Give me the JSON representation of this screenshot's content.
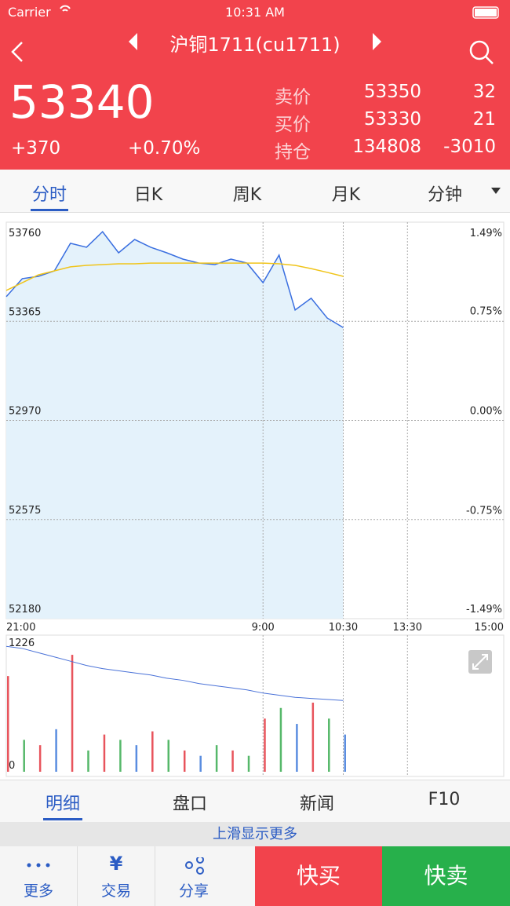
{
  "status_bar": {
    "carrier": "Carrier",
    "time": "10:31 AM"
  },
  "header": {
    "title": "沪铜1711(cu1711)",
    "price": "53340",
    "change": "+370",
    "change_pct": "+0.70%",
    "quotes": [
      [
        "卖价",
        "53350",
        "32"
      ],
      [
        "买价",
        "53330",
        "21"
      ],
      [
        "持仓",
        "134808",
        "-3010"
      ]
    ]
  },
  "tabs": {
    "items": [
      "分时",
      "日K",
      "周K",
      "月K",
      "分钟"
    ],
    "active": 0
  },
  "chart_data": [
    {
      "type": "line",
      "x": [
        0,
        15,
        30,
        45,
        60,
        75,
        90,
        105,
        120,
        135,
        150,
        165,
        180,
        195,
        210,
        225,
        240,
        255,
        270,
        285,
        300,
        315
      ],
      "xlim": [
        0,
        465
      ],
      "xticks": [
        {
          "value": 0,
          "label": "21:00"
        },
        {
          "value": 240,
          "label": "9:00"
        },
        {
          "value": 315,
          "label": "10:30"
        },
        {
          "value": 375,
          "label": "13:30"
        },
        {
          "value": 465,
          "label": "15:00"
        }
      ],
      "ylim": [
        52180,
        53760
      ],
      "yticks": [
        52180,
        52575,
        52970,
        53365,
        53760
      ],
      "y2lim": [
        -1.49,
        1.49
      ],
      "y2ticks": [
        {
          "value": -1.49,
          "label": "-1.49%"
        },
        {
          "value": -0.75,
          "label": "-0.75%"
        },
        {
          "value": 0,
          "label": "0.00%"
        },
        {
          "value": 0.75,
          "label": "0.75%"
        },
        {
          "value": 1.49,
          "label": "1.49%"
        }
      ],
      "grid": true,
      "area_color": "#e4f2fb",
      "series": [
        {
          "color": "#3a6fe0",
          "values": [
            53463,
            53535,
            53544,
            53566,
            53676,
            53660,
            53722,
            53638,
            53691,
            53660,
            53638,
            53613,
            53597,
            53591,
            53613,
            53597,
            53519,
            53629,
            53410,
            53457,
            53378,
            53340
          ]
        },
        {
          "color": "#f0c419",
          "values": [
            53488,
            53519,
            53550,
            53566,
            53582,
            53588,
            53591,
            53594,
            53594,
            53597,
            53597,
            53597,
            53597,
            53597,
            53597,
            53597,
            53597,
            53594,
            53588,
            53575,
            53560,
            53544
          ]
        }
      ]
    },
    {
      "type": "bar",
      "x": [
        0,
        15,
        30,
        45,
        60,
        75,
        90,
        105,
        120,
        135,
        150,
        165,
        180,
        195,
        210,
        225,
        240,
        255,
        270,
        285,
        300,
        315
      ],
      "xlim": [
        0,
        465
      ],
      "ylim": [
        0,
        1226
      ],
      "yticks": [
        0,
        1226
      ],
      "values": [
        900,
        300,
        250,
        400,
        1100,
        200,
        350,
        300,
        250,
        380,
        300,
        200,
        150,
        250,
        200,
        150,
        500,
        600,
        450,
        650,
        500,
        350
      ],
      "colors": [
        "#e8545c",
        "#56b86a",
        "#e8545c",
        "#5a8de0",
        "#e8545c",
        "#56b86a",
        "#e8545c",
        "#56b86a",
        "#5a8de0",
        "#e8545c",
        "#56b86a",
        "#e8545c",
        "#5a8de0",
        "#56b86a",
        "#e8545c",
        "#56b86a",
        "#e8545c",
        "#56b86a",
        "#5a8de0",
        "#e8545c",
        "#56b86a",
        "#5a8de0"
      ],
      "series": [
        {
          "color": "#4a72d8",
          "values": [
            1180,
            1160,
            1120,
            1080,
            1040,
            1000,
            970,
            950,
            930,
            910,
            880,
            860,
            830,
            810,
            790,
            770,
            740,
            720,
            700,
            690,
            680,
            670
          ]
        }
      ]
    }
  ],
  "detail_tabs": {
    "items": [
      "明细",
      "盘口",
      "新闻",
      "F10"
    ],
    "active": 0
  },
  "more_hint": "上滑显示更多",
  "toolbar": {
    "more": "更多",
    "trade_icon": "¥",
    "trade": "交易",
    "share": "分享",
    "buy": "快买",
    "sell": "快卖"
  }
}
